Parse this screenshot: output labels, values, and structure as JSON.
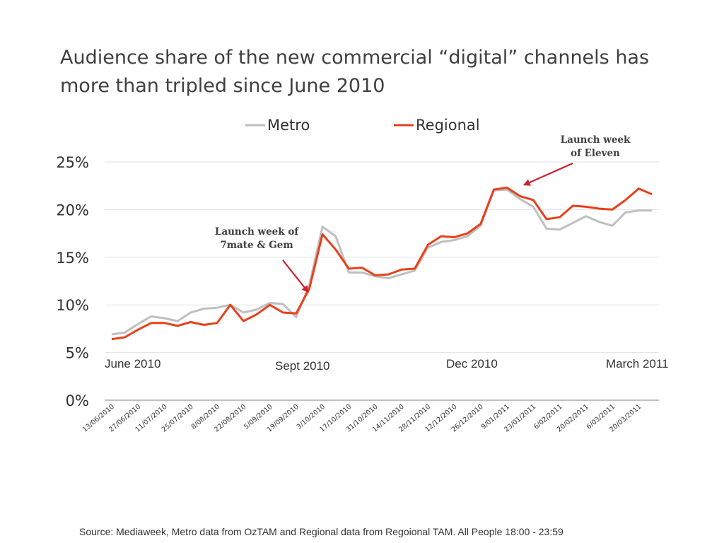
{
  "title": "Audience share of the new commercial “digital” channels has more than tripled since June 2010",
  "source": "Source: Mediaweek, Metro data from OzTAM and Regional data from Regoional TAM. All People 18:00 - 23:59",
  "period_labels": [
    "June 2010",
    "Sept 2010",
    "Dec 2010",
    "March 2011"
  ],
  "colors": {
    "metro": "#BFBFBF",
    "regional": "#E8401C",
    "annotation_arrow": "#D0202E",
    "grid": "#E2E2E2",
    "axis": "#9A9A9A"
  },
  "chart_data": {
    "type": "line",
    "ylim": [
      0,
      25
    ],
    "y_ticks": [
      0,
      5,
      10,
      15,
      20,
      25
    ],
    "y_tick_labels": [
      "0%",
      "5%",
      "10%",
      "15%",
      "20%",
      "25%"
    ],
    "grid": true,
    "legend": "top-center",
    "x": [
      "13/06/2010",
      "20/06/2010",
      "27/06/2010",
      "4/07/2010",
      "11/07/2010",
      "18/07/2010",
      "25/07/2010",
      "1/08/2010",
      "8/08/2010",
      "15/08/2010",
      "22/08/2010",
      "29/08/2010",
      "5/09/2010",
      "12/09/2010",
      "19/09/2010",
      "26/09/2010",
      "3/10/2010",
      "10/10/2010",
      "17/10/2010",
      "24/10/2010",
      "31/10/2010",
      "7/11/2010",
      "14/11/2010",
      "21/11/2010",
      "28/11/2010",
      "5/12/2010",
      "12/12/2010",
      "19/12/2010",
      "26/12/2010",
      "2/01/2011",
      "9/01/2011",
      "16/01/2011",
      "23/01/2011",
      "30/01/2011",
      "6/02/2011",
      "13/02/2011",
      "20/02/2011",
      "27/02/2011",
      "6/03/2011",
      "13/03/2011",
      "20/03/2011",
      "27/03/2011"
    ],
    "x_tick_labels": [
      "13/06/2010",
      "27/06/2010",
      "11/07/2010",
      "25/07/2010",
      "8/08/2010",
      "22/08/2010",
      "5/09/2010",
      "19/09/2010",
      "3/10/2010",
      "17/10/2010",
      "31/10/2010",
      "14/11/2010",
      "28/11/2010",
      "12/12/2010",
      "26/12/2010",
      "9/01/2011",
      "23/01/2011",
      "6/02/2011",
      "20/02/2011",
      "6/03/2011",
      "20/03/2011"
    ],
    "series": [
      {
        "name": "Metro",
        "color": "#BFBFBF",
        "values": [
          6.9,
          7.1,
          8.0,
          8.8,
          8.6,
          8.3,
          9.2,
          9.6,
          9.7,
          10.0,
          9.2,
          9.5,
          10.2,
          10.1,
          8.7,
          12.1,
          18.2,
          17.2,
          13.4,
          13.4,
          13.0,
          12.8,
          13.2,
          13.6,
          16.0,
          16.6,
          16.8,
          17.2,
          18.3,
          22.0,
          22.1,
          21.1,
          20.3,
          18.0,
          17.9,
          18.6,
          19.3,
          18.7,
          18.3,
          19.7,
          19.9,
          19.9
        ]
      },
      {
        "name": "Regional",
        "color": "#E8401C",
        "values": [
          6.4,
          6.6,
          7.4,
          8.1,
          8.1,
          7.8,
          8.2,
          7.9,
          8.1,
          10.0,
          8.3,
          9.0,
          10.0,
          9.2,
          9.1,
          11.7,
          17.4,
          15.8,
          13.8,
          13.9,
          13.1,
          13.2,
          13.7,
          13.8,
          16.3,
          17.2,
          17.1,
          17.5,
          18.5,
          22.1,
          22.3,
          21.4,
          21.0,
          19.0,
          19.2,
          20.4,
          20.3,
          20.1,
          20.0,
          21.0,
          22.2,
          21.6
        ]
      }
    ],
    "annotations": [
      {
        "text_lines": [
          "Launch week of",
          "7mate & Gem"
        ],
        "target_x": "26/09/2010",
        "target_y": 11.6
      },
      {
        "text_lines": [
          "Launch week",
          "of Eleven"
        ],
        "target_x": "16/01/2011",
        "target_y": 22.6
      }
    ]
  }
}
